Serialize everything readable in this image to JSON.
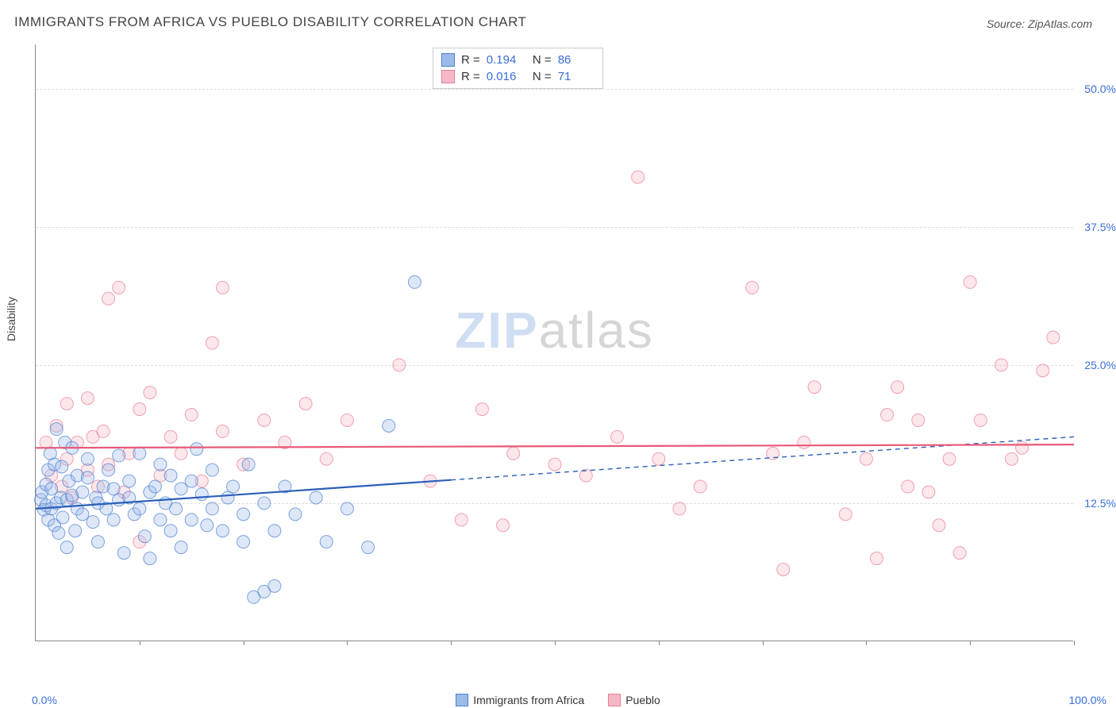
{
  "title": "IMMIGRANTS FROM AFRICA VS PUEBLO DISABILITY CORRELATION CHART",
  "source": "Source: ZipAtlas.com",
  "ylabel": "Disability",
  "watermark": {
    "part1": "ZIP",
    "part2": "atlas"
  },
  "chart": {
    "type": "scatter",
    "background": "#ffffff",
    "grid_color": "#dddddd",
    "axis_color": "#888888",
    "xlim": [
      0,
      100
    ],
    "ylim": [
      0,
      54
    ],
    "xticks": [
      10,
      20,
      30,
      40,
      50,
      60,
      70,
      80,
      90,
      100
    ],
    "xtick_labels": {
      "left": "0.0%",
      "right": "100.0%"
    },
    "yticks": [
      {
        "value": 12.5,
        "label": "12.5%"
      },
      {
        "value": 25.0,
        "label": "25.0%"
      },
      {
        "value": 37.5,
        "label": "37.5%"
      },
      {
        "value": 50.0,
        "label": "50.0%"
      }
    ],
    "marker_radius": 8,
    "marker_opacity": 0.35,
    "series": [
      {
        "name": "Immigrants from Africa",
        "fill": "#9dbbe8",
        "stroke": "#4a7fd0",
        "line_color": "#2b5fb8",
        "r_value": "0.194",
        "n_value": "86",
        "trend": {
          "x1": 0,
          "y1": 12.0,
          "x2": 100,
          "y2": 18.5,
          "solid_until_x": 40
        },
        "points": [
          [
            0.5,
            12.8
          ],
          [
            0.6,
            13.5
          ],
          [
            0.8,
            11.9
          ],
          [
            1.0,
            14.2
          ],
          [
            1.0,
            12.3
          ],
          [
            1.2,
            15.5
          ],
          [
            1.2,
            11.0
          ],
          [
            1.4,
            17.0
          ],
          [
            1.5,
            12.0
          ],
          [
            1.5,
            13.8
          ],
          [
            1.8,
            16.0
          ],
          [
            1.8,
            10.5
          ],
          [
            2.0,
            12.5
          ],
          [
            2.0,
            19.2
          ],
          [
            2.2,
            9.8
          ],
          [
            2.4,
            13.0
          ],
          [
            2.5,
            15.8
          ],
          [
            2.6,
            11.2
          ],
          [
            2.8,
            18.0
          ],
          [
            3.0,
            12.8
          ],
          [
            3.0,
            8.5
          ],
          [
            3.2,
            14.5
          ],
          [
            3.5,
            13.2
          ],
          [
            3.5,
            17.5
          ],
          [
            3.8,
            10.0
          ],
          [
            4.0,
            12.0
          ],
          [
            4.0,
            15.0
          ],
          [
            4.5,
            13.5
          ],
          [
            4.5,
            11.5
          ],
          [
            5.0,
            14.8
          ],
          [
            5.0,
            16.5
          ],
          [
            5.5,
            10.8
          ],
          [
            5.8,
            13.0
          ],
          [
            6.0,
            12.5
          ],
          [
            6.0,
            9.0
          ],
          [
            6.5,
            14.0
          ],
          [
            6.8,
            12.0
          ],
          [
            7.0,
            15.5
          ],
          [
            7.5,
            11.0
          ],
          [
            7.5,
            13.8
          ],
          [
            8.0,
            16.8
          ],
          [
            8.0,
            12.8
          ],
          [
            8.5,
            8.0
          ],
          [
            9.0,
            13.0
          ],
          [
            9.0,
            14.5
          ],
          [
            9.5,
            11.5
          ],
          [
            10.0,
            17.0
          ],
          [
            10.0,
            12.0
          ],
          [
            10.5,
            9.5
          ],
          [
            11.0,
            13.5
          ],
          [
            11.0,
            7.5
          ],
          [
            11.5,
            14.0
          ],
          [
            12.0,
            11.0
          ],
          [
            12.0,
            16.0
          ],
          [
            12.5,
            12.5
          ],
          [
            13.0,
            10.0
          ],
          [
            13.0,
            15.0
          ],
          [
            13.5,
            12.0
          ],
          [
            14.0,
            8.5
          ],
          [
            14.0,
            13.8
          ],
          [
            15.0,
            14.5
          ],
          [
            15.0,
            11.0
          ],
          [
            15.5,
            17.4
          ],
          [
            16.0,
            13.3
          ],
          [
            16.5,
            10.5
          ],
          [
            17.0,
            15.5
          ],
          [
            17.0,
            12.0
          ],
          [
            18.0,
            10.0
          ],
          [
            18.5,
            13.0
          ],
          [
            19.0,
            14.0
          ],
          [
            20.0,
            11.5
          ],
          [
            20.0,
            9.0
          ],
          [
            20.5,
            16.0
          ],
          [
            21.0,
            4.0
          ],
          [
            22.0,
            12.5
          ],
          [
            22.0,
            4.5
          ],
          [
            23.0,
            5.0
          ],
          [
            23.0,
            10.0
          ],
          [
            24.0,
            14.0
          ],
          [
            25.0,
            11.5
          ],
          [
            27.0,
            13.0
          ],
          [
            28.0,
            9.0
          ],
          [
            30.0,
            12.0
          ],
          [
            32.0,
            8.5
          ],
          [
            34.0,
            19.5
          ],
          [
            36.5,
            32.5
          ]
        ]
      },
      {
        "name": "Pueblo",
        "fill": "#f5b9c6",
        "stroke": "#e87d94",
        "line_color": "#e85a7a",
        "r_value": "0.016",
        "n_value": "71",
        "trend": {
          "x1": 0,
          "y1": 17.5,
          "x2": 100,
          "y2": 17.8,
          "solid_until_x": 100
        },
        "points": [
          [
            1.0,
            18.0
          ],
          [
            1.5,
            15.0
          ],
          [
            2.0,
            19.5
          ],
          [
            2.5,
            14.0
          ],
          [
            3.0,
            21.5
          ],
          [
            3.0,
            16.5
          ],
          [
            3.5,
            13.0
          ],
          [
            4.0,
            18.0
          ],
          [
            5.0,
            22.0
          ],
          [
            5.0,
            15.5
          ],
          [
            5.5,
            18.5
          ],
          [
            6.0,
            14.0
          ],
          [
            6.5,
            19.0
          ],
          [
            7.0,
            31.0
          ],
          [
            7.0,
            16.0
          ],
          [
            8.0,
            32.0
          ],
          [
            8.5,
            13.5
          ],
          [
            9.0,
            17.0
          ],
          [
            10.0,
            9.0
          ],
          [
            10.0,
            21.0
          ],
          [
            11.0,
            22.5
          ],
          [
            12.0,
            15.0
          ],
          [
            13.0,
            18.5
          ],
          [
            14.0,
            17.0
          ],
          [
            15.0,
            20.5
          ],
          [
            16.0,
            14.5
          ],
          [
            17.0,
            27.0
          ],
          [
            18.0,
            19.0
          ],
          [
            18.0,
            32.0
          ],
          [
            20.0,
            16.0
          ],
          [
            22.0,
            20.0
          ],
          [
            24.0,
            18.0
          ],
          [
            26.0,
            21.5
          ],
          [
            28.0,
            16.5
          ],
          [
            30.0,
            20.0
          ],
          [
            35.0,
            25.0
          ],
          [
            38.0,
            14.5
          ],
          [
            41.0,
            11.0
          ],
          [
            43.0,
            21.0
          ],
          [
            45.0,
            10.5
          ],
          [
            46.0,
            17.0
          ],
          [
            50.0,
            16.0
          ],
          [
            53.0,
            15.0
          ],
          [
            56.0,
            18.5
          ],
          [
            58.0,
            42.0
          ],
          [
            60.0,
            16.5
          ],
          [
            62.0,
            12.0
          ],
          [
            64.0,
            14.0
          ],
          [
            69.0,
            32.0
          ],
          [
            71.0,
            17.0
          ],
          [
            72.0,
            6.5
          ],
          [
            74.0,
            18.0
          ],
          [
            75.0,
            23.0
          ],
          [
            78.0,
            11.5
          ],
          [
            80.0,
            16.5
          ],
          [
            81.0,
            7.5
          ],
          [
            82.0,
            20.5
          ],
          [
            83.0,
            23.0
          ],
          [
            84.0,
            14.0
          ],
          [
            85.0,
            20.0
          ],
          [
            86.0,
            13.5
          ],
          [
            87.0,
            10.5
          ],
          [
            88.0,
            16.5
          ],
          [
            89.0,
            8.0
          ],
          [
            90.0,
            32.5
          ],
          [
            91.0,
            20.0
          ],
          [
            93.0,
            25.0
          ],
          [
            94.0,
            16.5
          ],
          [
            95.0,
            17.5
          ],
          [
            97.0,
            24.5
          ],
          [
            98.0,
            27.5
          ]
        ]
      }
    ]
  }
}
